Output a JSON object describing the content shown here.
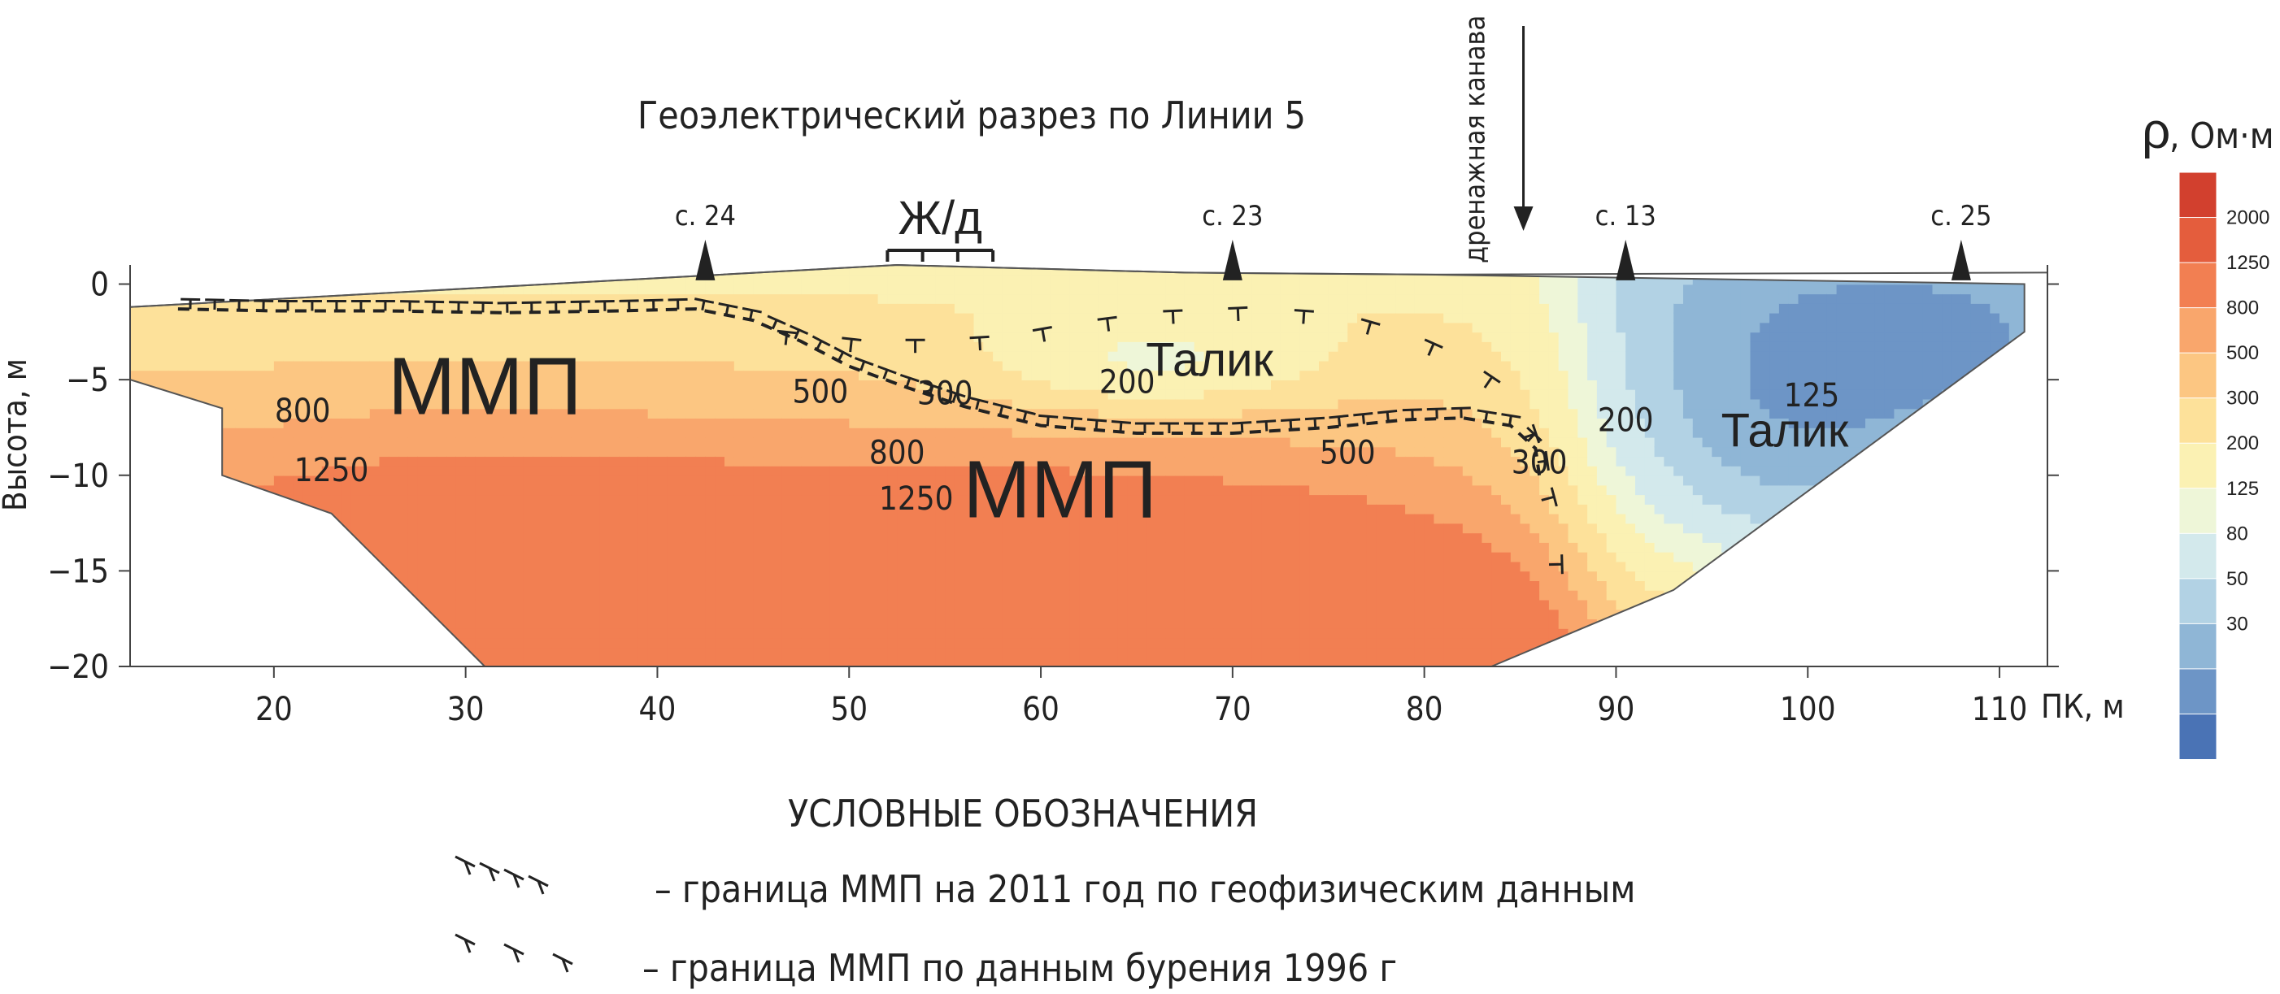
{
  "chart_data": {
    "type": "contour",
    "title": "Геоэлектрический разрез по Линии 5",
    "xlabel": "ПК, м",
    "ylabel": "Высота, м",
    "xlim": [
      12.5,
      112.5
    ],
    "ylim": [
      -20,
      1.0
    ],
    "x_ticks": [
      20,
      30,
      40,
      50,
      60,
      70,
      80,
      90,
      100,
      110
    ],
    "y_ticks": [
      0,
      -5,
      -10,
      -15,
      -20
    ],
    "colorbar": {
      "label": "ρ, Ом·м",
      "levels": [
        30,
        50,
        80,
        125,
        200,
        300,
        500,
        800,
        1250,
        2000
      ],
      "labeled_levels": [
        "2000",
        "1250",
        "800",
        "500",
        "300",
        "200",
        "125",
        "80",
        "50",
        "30"
      ],
      "colors": [
        "#4a73b5",
        "#6d95c6",
        "#8fb6d6",
        "#b2d2e4",
        "#d3e9ec",
        "#eef6d8",
        "#fbf1b3",
        "#fde19a",
        "#fcc682",
        "#f9a66c",
        "#f27f52",
        "#e45d3d",
        "#d2402e"
      ]
    },
    "contour_labels": [
      {
        "text": "800",
        "x": 21.5,
        "y": -7.2
      },
      {
        "text": "1250",
        "x": 23.0,
        "y": -10.3
      },
      {
        "text": "500",
        "x": 48.5,
        "y": -6.2
      },
      {
        "text": "300",
        "x": 55.0,
        "y": -6.3
      },
      {
        "text": "200",
        "x": 64.5,
        "y": -5.7
      },
      {
        "text": "800",
        "x": 52.5,
        "y": -9.4
      },
      {
        "text": "1250",
        "x": 53.5,
        "y": -11.8
      },
      {
        "text": "500",
        "x": 76.0,
        "y": -9.4
      },
      {
        "text": "300",
        "x": 86.0,
        "y": -9.9
      },
      {
        "text": "200",
        "x": 90.5,
        "y": -7.7
      },
      {
        "text": "125",
        "x": 100.2,
        "y": -6.4
      }
    ],
    "region_labels": [
      {
        "text": "ММП",
        "x": 31.0,
        "y": -6.8,
        "size": "xl"
      },
      {
        "text": "ММП",
        "x": 61.0,
        "y": -12.2,
        "size": "xl"
      },
      {
        "text": "Талик",
        "x": 68.8,
        "y": -4.8,
        "size": "l"
      },
      {
        "text": "Талик",
        "x": 98.8,
        "y": -8.5,
        "size": "l"
      }
    ],
    "surface_profile": [
      [
        12.5,
        -1.2
      ],
      [
        52.5,
        1.0
      ],
      [
        67.5,
        0.6
      ],
      [
        80.0,
        0.5
      ],
      [
        112.5,
        0.6
      ]
    ],
    "section_outline": [
      [
        12.5,
        -1.2
      ],
      [
        52.5,
        1.0
      ],
      [
        67.5,
        0.6
      ],
      [
        80.0,
        0.5
      ],
      [
        111.3,
        0.0
      ],
      [
        111.3,
        -2.5
      ],
      [
        93.0,
        -16.0
      ],
      [
        83.5,
        -20.0
      ],
      [
        31.0,
        -20.0
      ],
      [
        23.0,
        -12.0
      ],
      [
        17.3,
        -10.0
      ],
      [
        17.3,
        -6.5
      ],
      [
        12.5,
        -5.0
      ]
    ],
    "frost_boundary_2011": [
      [
        15.0,
        -1.3
      ],
      [
        20.0,
        -1.4
      ],
      [
        26.0,
        -1.4
      ],
      [
        32.0,
        -1.5
      ],
      [
        38.0,
        -1.4
      ],
      [
        42.0,
        -1.3
      ],
      [
        45.0,
        -1.9
      ],
      [
        47.5,
        -3.0
      ],
      [
        50.0,
        -4.3
      ],
      [
        53.0,
        -5.4
      ],
      [
        56.0,
        -6.4
      ],
      [
        60.0,
        -7.4
      ],
      [
        65.0,
        -7.8
      ],
      [
        70.0,
        -7.8
      ],
      [
        75.0,
        -7.5
      ],
      [
        79.0,
        -7.1
      ],
      [
        82.0,
        -7.0
      ],
      [
        84.5,
        -7.4
      ],
      [
        85.8,
        -8.6
      ],
      [
        86.0,
        -10.0
      ]
    ],
    "frost_boundary_1996": [
      [
        45.0,
        -3.0
      ],
      [
        50.5,
        -3.6
      ],
      [
        54.5,
        -3.6
      ],
      [
        58.0,
        -3.4
      ],
      [
        62.5,
        -2.6
      ],
      [
        66.5,
        -2.1
      ],
      [
        71.0,
        -1.9
      ],
      [
        75.5,
        -2.2
      ],
      [
        79.0,
        -3.2
      ],
      [
        81.5,
        -4.3
      ],
      [
        84.0,
        -6.0
      ],
      [
        85.0,
        -7.5
      ],
      [
        85.5,
        -9.0
      ],
      [
        86.3,
        -12.0
      ],
      [
        86.5,
        -14.5
      ],
      [
        86.6,
        -18.0
      ]
    ],
    "wells": [
      {
        "label": "с. 24",
        "x": 42.5
      },
      {
        "label": "с. 23",
        "x": 70.0
      },
      {
        "label": "с. 13",
        "x": 90.5
      },
      {
        "label": "с. 25",
        "x": 108.0
      }
    ],
    "railway": {
      "label": "Ж/д",
      "x_start": 52.0,
      "x_end": 57.5
    },
    "drainage": {
      "label": "дренажная канава",
      "x": 85.0
    }
  },
  "legend": {
    "title": "УСЛОВНЫЕ ОБОЗНАЧЕНИЯ",
    "items": [
      {
        "text": "– граница ММП  на 2011 год по геофизическим данным"
      },
      {
        "text": "– граница ММП по данным бурения 1996 г"
      }
    ]
  }
}
